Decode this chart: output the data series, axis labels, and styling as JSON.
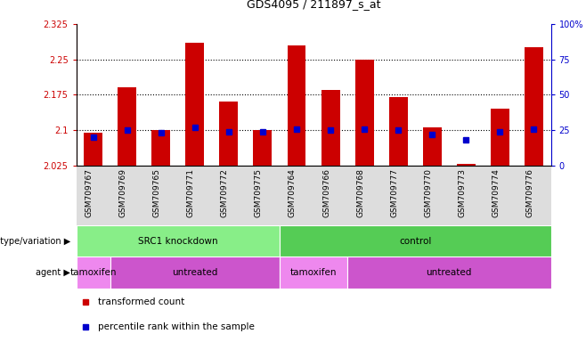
{
  "title": "GDS4095 / 211897_s_at",
  "samples": [
    "GSM709767",
    "GSM709769",
    "GSM709765",
    "GSM709771",
    "GSM709772",
    "GSM709775",
    "GSM709764",
    "GSM709766",
    "GSM709768",
    "GSM709777",
    "GSM709770",
    "GSM709773",
    "GSM709774",
    "GSM709776"
  ],
  "transformed_count": [
    2.095,
    2.19,
    2.1,
    2.285,
    2.16,
    2.1,
    2.28,
    2.185,
    2.25,
    2.17,
    2.105,
    2.028,
    2.145,
    2.275
  ],
  "percentile_rank": [
    20,
    25,
    23,
    27,
    24,
    24,
    26,
    25,
    26,
    25,
    22,
    18,
    24,
    26
  ],
  "bar_bottom": 2.025,
  "ylim_left": [
    2.025,
    2.325
  ],
  "ylim_right": [
    0,
    100
  ],
  "yticks_left": [
    2.025,
    2.1,
    2.175,
    2.25,
    2.325
  ],
  "yticks_right": [
    0,
    25,
    50,
    75,
    100
  ],
  "ytick_labels_left": [
    "2.025",
    "2.1",
    "2.175",
    "2.25",
    "2.325"
  ],
  "ytick_labels_right": [
    "0",
    "25",
    "50",
    "75",
    "100%"
  ],
  "bar_color": "#cc0000",
  "dot_color": "#0000cc",
  "genotype_groups": [
    {
      "label": "SRC1 knockdown",
      "start": 0,
      "end": 6,
      "color": "#88ee88"
    },
    {
      "label": "control",
      "start": 6,
      "end": 14,
      "color": "#55cc55"
    }
  ],
  "agent_groups": [
    {
      "label": "tamoxifen",
      "start": 0,
      "end": 1,
      "color": "#ee88ee"
    },
    {
      "label": "untreated",
      "start": 1,
      "end": 6,
      "color": "#cc55cc"
    },
    {
      "label": "tamoxifen",
      "start": 6,
      "end": 8,
      "color": "#ee88ee"
    },
    {
      "label": "untreated",
      "start": 8,
      "end": 14,
      "color": "#cc55cc"
    }
  ],
  "legend_items": [
    {
      "label": "transformed count",
      "color": "#cc0000",
      "marker": "s"
    },
    {
      "label": "percentile rank within the sample",
      "color": "#0000cc",
      "marker": "s"
    }
  ],
  "label_genotype": "genotype/variation",
  "label_agent": "agent",
  "grid_dotted_values": [
    2.1,
    2.175,
    2.25
  ],
  "bar_width": 0.55,
  "xlabels_bg": "#dddddd",
  "fig_bg": "#ffffff"
}
